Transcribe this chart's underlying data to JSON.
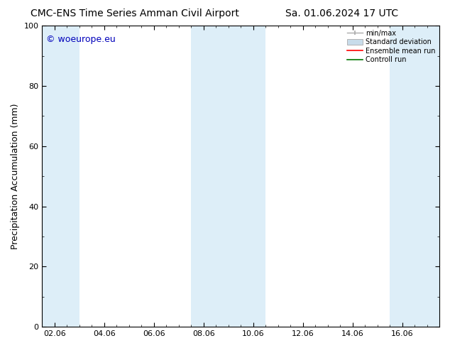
{
  "title_left": "CMC-ENS Time Series Amman Civil Airport",
  "title_right": "Sa. 01.06.2024 17 UTC",
  "ylabel": "Precipitation Accumulation (mm)",
  "watermark": "© woeurope.eu",
  "ylim": [
    0,
    100
  ],
  "xtick_labels": [
    "02.06",
    "04.06",
    "06.06",
    "08.06",
    "10.06",
    "12.06",
    "14.06",
    "16.06"
  ],
  "xtick_positions": [
    0,
    2,
    4,
    6,
    8,
    10,
    12,
    14
  ],
  "xlim": [
    -0.5,
    15.5
  ],
  "ytick_labels": [
    0,
    20,
    40,
    60,
    80,
    100
  ],
  "background_color": "#ffffff",
  "plot_bg_color": "#ffffff",
  "shaded_bands": [
    {
      "xmin": -0.5,
      "xmax": 1.0,
      "color": "#ddeef8"
    },
    {
      "xmin": 5.5,
      "xmax": 8.5,
      "color": "#ddeef8"
    },
    {
      "xmin": 13.5,
      "xmax": 15.5,
      "color": "#ddeef8"
    }
  ],
  "legend_items": [
    {
      "label": "min/max",
      "color": "#aaaaaa",
      "type": "errorbar"
    },
    {
      "label": "Standard deviation",
      "color": "#c8dcea",
      "type": "bar"
    },
    {
      "label": "Ensemble mean run",
      "color": "#ff0000",
      "type": "line"
    },
    {
      "label": "Controll run",
      "color": "#007700",
      "type": "line"
    }
  ],
  "title_fontsize": 10,
  "axis_fontsize": 9,
  "tick_fontsize": 8,
  "watermark_color": "#0000bb",
  "watermark_fontsize": 9
}
